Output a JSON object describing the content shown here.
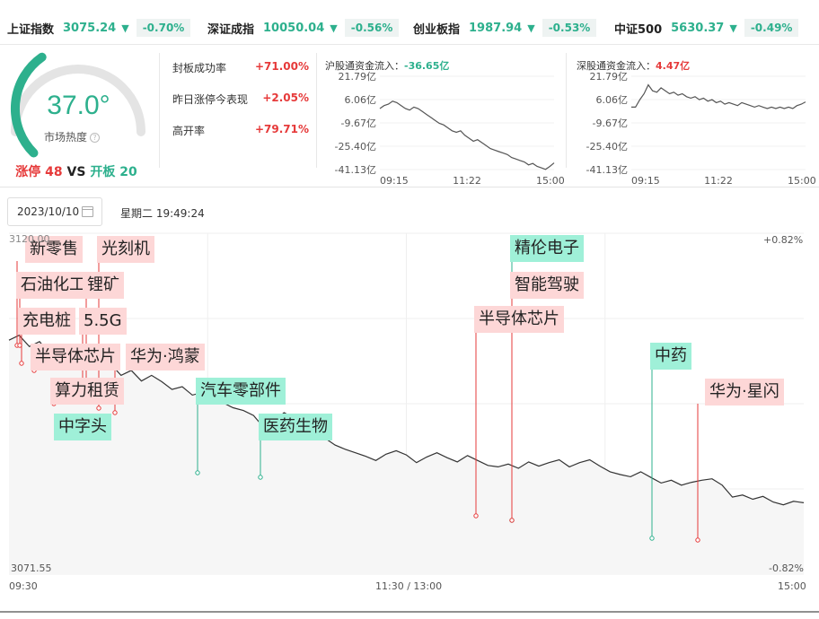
{
  "indices": [
    {
      "name": "上证指数",
      "value": "3075.24",
      "change": "-0.70%"
    },
    {
      "name": "深证成指",
      "value": "10050.04",
      "change": "-0.56%"
    },
    {
      "name": "创业板指",
      "value": "1987.94",
      "change": "-0.53%"
    },
    {
      "name": "中证500",
      "value": "5630.37",
      "change": "-0.49%"
    }
  ],
  "heat": {
    "value": "37.0°",
    "label": "市场热度",
    "limit_up_label": "涨停",
    "limit_up_count": "48",
    "vs": "VS",
    "open_label": "开板",
    "open_count": "20",
    "level": 0.37
  },
  "stats": [
    {
      "label": "封板成功率",
      "value": "+71.00%"
    },
    {
      "label": "昨日涨停今表现",
      "value": "+2.05%"
    },
    {
      "label": "高开率",
      "value": "+79.71%"
    }
  ],
  "flows": {
    "sh": {
      "title": "沪股通资金流入：",
      "value": "-36.65亿"
    },
    "sz": {
      "title": "深股通资金流入：",
      "value": "4.47亿"
    },
    "y_ticks": [
      "21.79亿",
      "6.06亿",
      "-9.67亿",
      "-25.40亿",
      "-41.13亿"
    ],
    "x_ticks": [
      "09:15",
      "11:22",
      "15:00"
    ]
  },
  "date": {
    "value": "2023/10/10",
    "weekday_time": "星期二 19:49:24"
  },
  "main_chart": {
    "y_top_label": "3120.00",
    "y_bottom_label": "3071.55",
    "pct_top": "+0.82%",
    "pct_bottom": "-0.82%",
    "x_labels": [
      "09:30",
      "11:30 / 13:00",
      "15:00"
    ]
  },
  "tags": [
    {
      "text": "新零售",
      "kind": "up"
    },
    {
      "text": "光刻机",
      "kind": "up"
    },
    {
      "text": "石油化工",
      "kind": "up"
    },
    {
      "text": "锂矿",
      "kind": "up"
    },
    {
      "text": "充电桩",
      "kind": "up"
    },
    {
      "text": "5.5G",
      "kind": "up"
    },
    {
      "text": "半导体芯片",
      "kind": "up"
    },
    {
      "text": "华为·鸿蒙",
      "kind": "up"
    },
    {
      "text": "算力租赁",
      "kind": "up"
    },
    {
      "text": "中字头",
      "kind": "dn"
    },
    {
      "text": "汽车零部件",
      "kind": "dn"
    },
    {
      "text": "医药生物",
      "kind": "dn"
    },
    {
      "text": "精伦电子",
      "kind": "dn"
    },
    {
      "text": "智能驾驶",
      "kind": "up"
    },
    {
      "text": "半导体芯片",
      "kind": "up"
    },
    {
      "text": "中药",
      "kind": "dn"
    },
    {
      "text": "华为·星闪",
      "kind": "up"
    }
  ],
  "colors": {
    "up": "#e63a3a",
    "down": "#2db08d",
    "up_tag": "#fdd7d7",
    "down_tag": "#9ff0d8"
  },
  "chart_data": [
    {
      "type": "line",
      "title": "沪股通资金流入",
      "x_ticks": [
        "09:15",
        "11:22",
        "15:00"
      ],
      "y_ticks": [
        21.79,
        6.06,
        -9.67,
        -25.4,
        -41.13
      ],
      "ylim": [
        -41.13,
        21.79
      ],
      "unit": "亿",
      "values": [
        0,
        2,
        3,
        5,
        4,
        2,
        0,
        -1,
        1,
        0,
        -2,
        -4,
        -6,
        -8,
        -10,
        -11,
        -13,
        -15,
        -16,
        -15,
        -18,
        -20,
        -22,
        -21,
        -23,
        -25,
        -27,
        -28,
        -29,
        -30,
        -31,
        -33,
        -34,
        -35,
        -36,
        -38,
        -37,
        -39,
        -40,
        -41,
        -39,
        -36.65
      ]
    },
    {
      "type": "line",
      "title": "深股通资金流入",
      "x_ticks": [
        "09:15",
        "11:22",
        "15:00"
      ],
      "y_ticks": [
        21.79,
        6.06,
        -9.67,
        -25.4,
        -41.13
      ],
      "ylim": [
        -41.13,
        21.79
      ],
      "unit": "亿",
      "values": [
        1,
        1,
        6,
        10,
        16,
        12,
        11,
        14,
        12,
        10,
        11,
        9,
        10,
        8,
        7,
        8,
        6,
        7,
        5,
        6,
        4,
        5,
        3,
        4,
        3,
        2,
        4,
        3,
        2,
        1,
        2,
        1,
        0,
        1,
        0,
        1,
        0,
        1,
        0,
        2,
        3,
        4.47
      ]
    },
    {
      "type": "line",
      "title": "",
      "x_ticks": [
        "09:30",
        "11:30 / 13:00",
        "15:00"
      ],
      "ylim": [
        3071.55,
        3120.0
      ],
      "values": [
        3104.8,
        3105.5,
        3103.9,
        3104.6,
        3102.9,
        3103.6,
        3101.8,
        3102.8,
        3101.2,
        3100.6,
        3101.4,
        3099.8,
        3100.5,
        3099.0,
        3099.8,
        3098.9,
        3097.8,
        3098.2,
        3097.0,
        3097.4,
        3096.3,
        3095.9,
        3095.2,
        3094.8,
        3094.1,
        3092.4,
        3093.2,
        3094.5,
        3093.7,
        3093.0,
        3091.7,
        3090.9,
        3089.9,
        3089.3,
        3088.8,
        3088.3,
        3087.7,
        3088.6,
        3089.1,
        3088.5,
        3087.4,
        3088.2,
        3088.8,
        3088.1,
        3087.5,
        3088.4,
        3087.7,
        3087.0,
        3086.8,
        3087.2,
        3086.6,
        3087.5,
        3086.9,
        3087.4,
        3087.8,
        3086.8,
        3087.4,
        3087.8,
        3086.9,
        3086.1,
        3085.7,
        3085.4,
        3086.1,
        3085.3,
        3084.5,
        3084.9,
        3084.2,
        3084.6,
        3084.9,
        3085.1,
        3084.2,
        3082.5,
        3082.8,
        3082.2,
        3082.6,
        3081.8,
        3081.4,
        3081.9,
        3081.7
      ]
    }
  ]
}
